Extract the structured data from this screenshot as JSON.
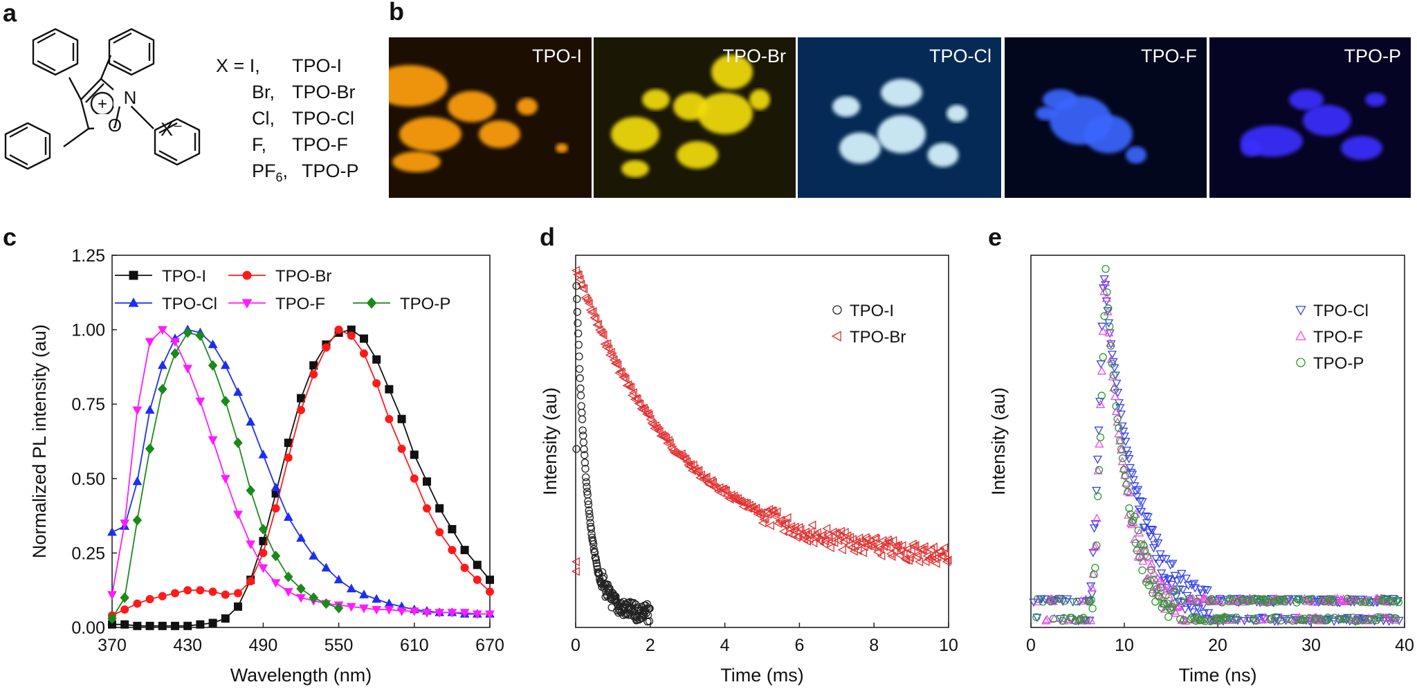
{
  "panels": {
    "a": "a",
    "b": "b",
    "c": "c",
    "d": "d",
    "e": "e"
  },
  "structure": {
    "plus": "+",
    "N": "N",
    "O": "O",
    "anion": "X⁻",
    "x_eq": "X = I,",
    "rows": [
      {
        "sym": "X = I,",
        "name": "TPO-I"
      },
      {
        "sym": "Br,",
        "name": "TPO-Br"
      },
      {
        "sym": "Cl,",
        "name": "TPO-Cl"
      },
      {
        "sym": "F,",
        "name": "TPO-F"
      },
      {
        "sym": "PF",
        "sub": "6",
        "tail": ",",
        "name": "TPO-P"
      }
    ]
  },
  "photos": [
    {
      "label": "TPO-I",
      "bg": "#1c0f02",
      "glow": "#ffa010"
    },
    {
      "label": "TPO-Br",
      "bg": "#1a1804",
      "glow": "#f2dc10"
    },
    {
      "label": "TPO-Cl",
      "bg": "#052a55",
      "glow": "#d8f4ff"
    },
    {
      "label": "TPO-F",
      "bg": "#03071e",
      "glow": "#3a66ff"
    },
    {
      "label": "TPO-P",
      "bg": "#060424",
      "glow": "#3a2dff"
    }
  ],
  "colors": {
    "I": "#111111",
    "Br": "#ff1a1a",
    "Cl": "#1c2ff0",
    "F": "#ff1aff",
    "P": "#1a8a1a"
  },
  "chart_data": [
    {
      "id": "c",
      "type": "line",
      "xlabel": "Wavelength (nm)",
      "ylabel": "Normalized PL intensity (au)",
      "xlim": [
        370,
        670
      ],
      "ylim": [
        0,
        1.25
      ],
      "xticks": [
        "370",
        "430",
        "490",
        "550",
        "610",
        "670"
      ],
      "yticks": [
        "0.00",
        "0.25",
        "0.50",
        "0.75",
        "1.00",
        "1.25"
      ],
      "legend": [
        "TPO-I",
        "TPO-Br",
        "TPO-Cl",
        "TPO-F",
        "TPO-P"
      ],
      "series": [
        {
          "name": "TPO-I",
          "color": "#111111",
          "marker": "square",
          "x": [
            370,
            380,
            390,
            400,
            410,
            420,
            430,
            440,
            450,
            460,
            470,
            480,
            490,
            500,
            510,
            520,
            530,
            540,
            550,
            560,
            570,
            580,
            590,
            600,
            610,
            620,
            630,
            640,
            650,
            660,
            670
          ],
          "y": [
            0.01,
            0.01,
            0.005,
            0.005,
            0.005,
            0.005,
            0.005,
            0.01,
            0.015,
            0.03,
            0.07,
            0.16,
            0.29,
            0.45,
            0.62,
            0.77,
            0.88,
            0.95,
            0.99,
            1.0,
            0.97,
            0.9,
            0.8,
            0.7,
            0.58,
            0.49,
            0.4,
            0.33,
            0.26,
            0.21,
            0.16
          ]
        },
        {
          "name": "TPO-Br",
          "color": "#ff1a1a",
          "marker": "circle",
          "x": [
            370,
            380,
            390,
            400,
            410,
            420,
            430,
            440,
            450,
            460,
            470,
            480,
            490,
            500,
            510,
            520,
            530,
            540,
            550,
            560,
            570,
            580,
            590,
            600,
            610,
            620,
            630,
            640,
            650,
            660,
            670
          ],
          "y": [
            0.04,
            0.06,
            0.08,
            0.095,
            0.105,
            0.115,
            0.125,
            0.125,
            0.12,
            0.11,
            0.115,
            0.155,
            0.25,
            0.4,
            0.57,
            0.73,
            0.85,
            0.94,
            1.0,
            0.98,
            0.92,
            0.82,
            0.7,
            0.6,
            0.5,
            0.4,
            0.32,
            0.26,
            0.2,
            0.16,
            0.12
          ]
        },
        {
          "name": "TPO-Cl",
          "color": "#1c2ff0",
          "marker": "triangle",
          "x": [
            370,
            380,
            390,
            400,
            410,
            420,
            430,
            440,
            450,
            460,
            470,
            480,
            490,
            500,
            510,
            520,
            530,
            540,
            550,
            560,
            570,
            580,
            590,
            600,
            610,
            620,
            630,
            640,
            650,
            660,
            670
          ],
          "y": [
            0.32,
            0.34,
            0.49,
            0.73,
            0.88,
            0.97,
            1.0,
            0.99,
            0.95,
            0.88,
            0.79,
            0.69,
            0.58,
            0.47,
            0.37,
            0.3,
            0.24,
            0.2,
            0.16,
            0.13,
            0.11,
            0.095,
            0.08,
            0.07,
            0.06,
            0.055,
            0.05,
            0.05,
            0.045,
            0.045,
            0.045
          ]
        },
        {
          "name": "TPO-F",
          "color": "#ff1aff",
          "marker": "down-triangle",
          "x": [
            370,
            380,
            390,
            400,
            410,
            420,
            430,
            440,
            450,
            460,
            470,
            480,
            490,
            500,
            510,
            520,
            530,
            540,
            550,
            560,
            570,
            580,
            590,
            600,
            610,
            620,
            630,
            640,
            650,
            660,
            670
          ],
          "y": [
            0.11,
            0.35,
            0.73,
            0.96,
            1.0,
            0.96,
            0.87,
            0.76,
            0.63,
            0.5,
            0.38,
            0.28,
            0.2,
            0.15,
            0.12,
            0.1,
            0.09,
            0.08,
            0.075,
            0.07,
            0.065,
            0.06,
            0.06,
            0.055,
            0.055,
            0.05,
            0.05,
            0.05,
            0.05,
            0.045,
            0.045
          ]
        },
        {
          "name": "TPO-P",
          "color": "#1a8a1a",
          "marker": "diamond",
          "x": [
            370,
            380,
            390,
            400,
            410,
            420,
            430,
            440,
            450,
            460,
            470,
            480,
            490,
            500,
            510,
            520,
            530,
            540,
            550
          ],
          "y": [
            0.03,
            0.1,
            0.36,
            0.6,
            0.8,
            0.92,
            0.99,
            0.98,
            0.88,
            0.76,
            0.62,
            0.46,
            0.33,
            0.24,
            0.17,
            0.13,
            0.1,
            0.08,
            0.065
          ]
        }
      ]
    },
    {
      "id": "d",
      "type": "scatter",
      "xlabel": "Time (ms)",
      "ylabel": "Intensity (au)",
      "xlim": [
        0,
        10
      ],
      "xticks": [
        "0",
        "2",
        "4",
        "6",
        "8",
        "10"
      ],
      "legend": [
        "TPO-I",
        "TPO-Br"
      ],
      "series": [
        {
          "name": "TPO-I",
          "color": "#222222",
          "marker": "open-circle",
          "tau_ms": 0.3,
          "x_end_ms": 2
        },
        {
          "name": "TPO-Br",
          "color": "#e03030",
          "marker": "open-left-triangle",
          "tau_ms": 2.8,
          "x_end_ms": 10
        }
      ]
    },
    {
      "id": "e",
      "type": "scatter",
      "xlabel": "Time (ns)",
      "ylabel": "Intensity (au)",
      "xlim": [
        0,
        40
      ],
      "xticks": [
        "0",
        "10",
        "20",
        "30",
        "40"
      ],
      "legend": [
        "TPO-Cl",
        "TPO-F",
        "TPO-P"
      ],
      "series": [
        {
          "name": "TPO-Cl",
          "color": "#3340ee",
          "marker": "open-down-triangle",
          "peak_ns": 7.8,
          "tau_ns": 3.4
        },
        {
          "name": "TPO-F",
          "color": "#ee44ee",
          "marker": "open-up-triangle",
          "peak_ns": 7.9,
          "tau_ns": 2.4
        },
        {
          "name": "TPO-P",
          "color": "#2a9a2a",
          "marker": "open-circle",
          "peak_ns": 8.0,
          "tau_ns": 2.3
        }
      ]
    }
  ]
}
